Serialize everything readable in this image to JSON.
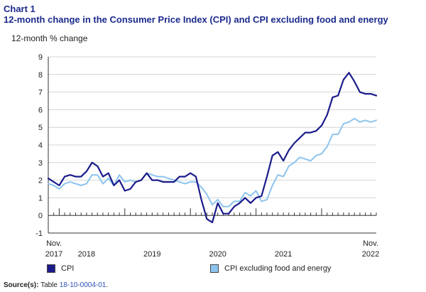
{
  "header": {
    "chart_number": "Chart 1",
    "title": "12-month change in the Consumer Price Index (CPI) and CPI excluding food and energy"
  },
  "source": {
    "label": "Source(s):",
    "text": "Table",
    "link": "18-10-0004-01",
    "suffix": "."
  },
  "colors": {
    "cpi": "#1b1b8c",
    "core": "#8cc4ee",
    "title": "#1b2a8c",
    "link": "#2b4fb8"
  },
  "chart_data": {
    "type": "line",
    "ylabel": "12-month % change",
    "ylim": [
      -1,
      9
    ],
    "yticks": [
      -1,
      0,
      1,
      2,
      3,
      4,
      5,
      6,
      7,
      8,
      9
    ],
    "grid": true,
    "legend_position": "bottom",
    "x_range": [
      "2017-11",
      "2022-11"
    ],
    "x_tick_labels": [
      {
        "label": "Nov.",
        "sub": "2017",
        "month": "2017-11"
      },
      {
        "label": "",
        "sub": "2018",
        "month": "2018-06"
      },
      {
        "label": "",
        "sub": "2019",
        "month": "2019-06"
      },
      {
        "label": "",
        "sub": "2020",
        "month": "2020-06"
      },
      {
        "label": "",
        "sub": "2021",
        "month": "2021-06"
      },
      {
        "label": "Nov.",
        "sub": "2022",
        "month": "2022-11"
      }
    ],
    "series": [
      {
        "name": "CPI",
        "color": "#1b1b8c",
        "values": [
          2.1,
          1.9,
          1.7,
          2.2,
          2.3,
          2.2,
          2.2,
          2.5,
          3.0,
          2.8,
          2.2,
          2.4,
          1.7,
          2.0,
          1.4,
          1.5,
          1.9,
          2.0,
          2.4,
          2.0,
          2.0,
          1.9,
          1.9,
          1.9,
          2.2,
          2.2,
          2.4,
          2.2,
          0.9,
          -0.2,
          -0.4,
          0.7,
          0.1,
          0.1,
          0.5,
          0.7,
          1.0,
          0.7,
          1.0,
          1.1,
          2.2,
          3.4,
          3.6,
          3.1,
          3.7,
          4.1,
          4.4,
          4.7,
          4.7,
          4.8,
          5.1,
          5.7,
          6.7,
          6.8,
          7.7,
          8.1,
          7.6,
          7.0,
          6.9,
          6.9,
          6.8
        ]
      },
      {
        "name": "CPI excluding food and energy",
        "color": "#8cc4ee",
        "values": [
          1.8,
          1.7,
          1.5,
          1.8,
          1.9,
          1.8,
          1.7,
          1.8,
          2.3,
          2.3,
          1.8,
          2.1,
          1.7,
          2.3,
          1.9,
          2.0,
          1.9,
          2.0,
          2.4,
          2.3,
          2.2,
          2.2,
          2.1,
          2.0,
          1.9,
          1.8,
          1.9,
          1.9,
          1.6,
          1.2,
          0.6,
          0.9,
          0.5,
          0.5,
          0.8,
          0.8,
          1.3,
          1.1,
          1.4,
          0.8,
          0.9,
          1.7,
          2.3,
          2.2,
          2.8,
          3.0,
          3.3,
          3.2,
          3.1,
          3.4,
          3.5,
          3.9,
          4.6,
          4.6,
          5.2,
          5.3,
          5.5,
          5.3,
          5.4,
          5.3,
          5.4
        ]
      }
    ]
  }
}
